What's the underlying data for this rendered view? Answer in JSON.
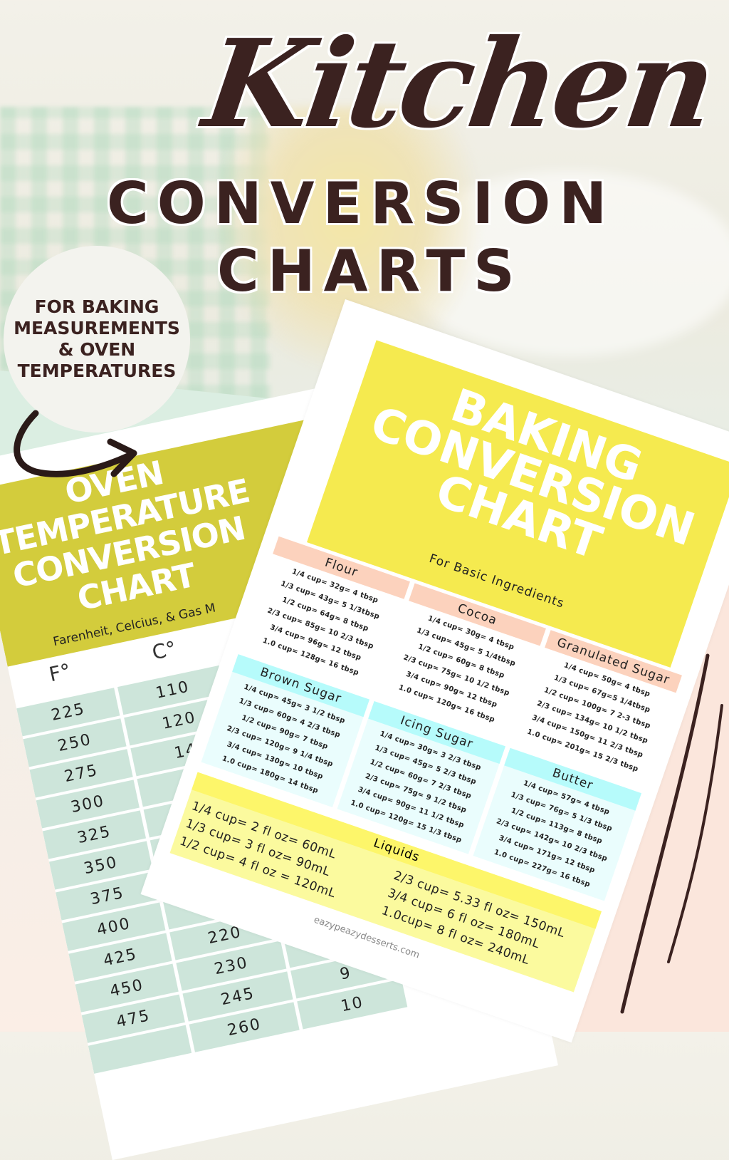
{
  "header": {
    "script_title": "Kitchen",
    "line1": "CONVERSION",
    "line2": "CHARTS"
  },
  "badge": {
    "lines": [
      "FOR BAKING",
      "MEASUREMENTS",
      "& OVEN",
      "TEMPERATURES"
    ]
  },
  "colors": {
    "brown": "#3b2220",
    "oven_header": "#d3cc3c",
    "oven_table": "#cde5da",
    "baking_header": "#f5ea4f",
    "peach": "#fcd2bd",
    "cyan": "#b6fbfb",
    "liquids": "#fbfa9e"
  },
  "oven_chart": {
    "title": "OVEN TEMPERATURE CONVERSION CHART",
    "subtitle": "Farenheit, Celcius, & Gas M",
    "col_f": "F°",
    "col_c": "C°",
    "rows": [
      {
        "f": "225",
        "c": "110",
        "g": ""
      },
      {
        "f": "250",
        "c": "120",
        "g": ""
      },
      {
        "f": "275",
        "c": "14",
        "g": ""
      },
      {
        "f": "300",
        "c": "",
        "g": ""
      },
      {
        "f": "325",
        "c": "",
        "g": ""
      },
      {
        "f": "350",
        "c": "",
        "g": ""
      },
      {
        "f": "375",
        "c": "",
        "g": ""
      },
      {
        "f": "400",
        "c": "",
        "g": ""
      },
      {
        "f": "425",
        "c": "220",
        "g": ""
      },
      {
        "f": "450",
        "c": "230",
        "g": ""
      },
      {
        "f": "475",
        "c": "245",
        "g": "9"
      },
      {
        "f": "",
        "c": "260",
        "g": "10"
      }
    ]
  },
  "baking_chart": {
    "title": "BAKING CONVERSION CHART",
    "subtitle": "For Basic Ingredients",
    "boxes": [
      {
        "name": "Flour",
        "items": [
          "1/4 cup= 32g= 4 tbsp",
          "1/3 cup= 43g= 5 1/3tbsp",
          "1/2 cup= 64g= 8 tbsp",
          "2/3 cup= 85g= 10 2/3 tbsp",
          "3/4 cup= 96g= 12 tbsp",
          "1.0 cup= 128g= 16 tbsp"
        ]
      },
      {
        "name": "Cocoa",
        "items": [
          "1/4 cup= 30g= 4 tbsp",
          "1/3 cup= 45g= 5 1/4tbsp",
          "1/2 cup= 60g= 8 tbsp",
          "2/3 cup= 75g= 10 1/2 tbsp",
          "3/4 cup= 90g= 12 tbsp",
          "1.0 cup= 120g= 16 tbsp"
        ]
      },
      {
        "name": "Granulated Sugar",
        "items": [
          "1/4 cup= 50g= 4 tbsp",
          "1/3 cup= 67g=5 1/4tbsp",
          "1/2 cup= 100g= 7 2-3 tbsp",
          "2/3 cup= 134g= 10 1/2 tbsp",
          "3/4 cup= 150g= 11 2/3 tbsp",
          "1.0 cup= 201g= 15 2/3 tbsp"
        ]
      },
      {
        "name": "Brown Sugar",
        "items": [
          "1/4 cup= 45g= 3 1/2 tbsp",
          "1/3 cup= 60g= 4 2/3 tbsp",
          "1/2 cup= 90g= 7 tbsp",
          "2/3 cup= 120g= 9 1/4 tbsp",
          "3/4 cup= 130g= 10 tbsp",
          "1.0 cup= 180g= 14 tbsp"
        ]
      },
      {
        "name": "Icing Sugar",
        "items": [
          "1/4 cup= 30g= 3 2/3 tbsp",
          "1/3 cup= 45g= 5 2/3 tbsp",
          "1/2 cup= 60g= 7 2/3 tbsp",
          "2/3 cup= 75g= 9 1/2 tbsp",
          "3/4 cup= 90g= 11 1/2 tbsp",
          "1.0 cup= 120g= 15 1/3 tbsp"
        ]
      },
      {
        "name": "Butter",
        "items": [
          "1/4 cup= 57g= 4 tbsp",
          "1/3 cup= 76g= 5 1/3 tbsp",
          "1/2 cup= 113g= 8 tbsp",
          "2/3 cup= 142g= 10 2/3 tbsp",
          "3/4 cup= 171g= 12 tbsp",
          "1.0 cup= 227g= 16 tbsp"
        ]
      }
    ],
    "liquids": {
      "name": "Liquids",
      "left": [
        "1/4 cup= 2 fl oz= 60mL",
        "1/3 cup= 3 fl oz= 90mL",
        "1/2 cup= 4 fl oz = 120mL"
      ],
      "right": [
        "2/3 cup= 5.33 fl oz= 150mL",
        "3/4 cup= 6 fl oz= 180mL",
        "1.0cup= 8 fl oz= 240mL"
      ]
    },
    "website": "eazypeazydesserts.com"
  }
}
